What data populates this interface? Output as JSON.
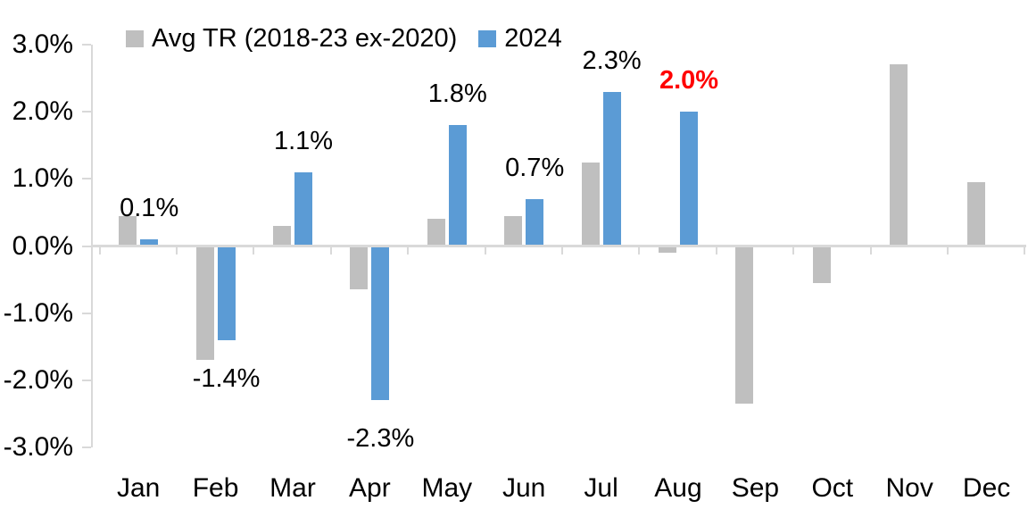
{
  "chart_data": {
    "type": "bar",
    "title": "",
    "xlabel": "",
    "ylabel": "",
    "categories": [
      "Jan",
      "Feb",
      "Mar",
      "Apr",
      "May",
      "Jun",
      "Jul",
      "Aug",
      "Sep",
      "Oct",
      "Nov",
      "Dec"
    ],
    "series": [
      {
        "name": "Avg TR (2018-23 ex-2020)",
        "color": "#BFBFBF",
        "values": [
          0.45,
          -1.7,
          0.3,
          -0.65,
          0.4,
          0.45,
          1.25,
          -0.1,
          -2.35,
          -0.55,
          2.7,
          0.95
        ]
      },
      {
        "name": "2024",
        "color": "#5B9BD5",
        "values": [
          0.1,
          -1.4,
          1.1,
          -2.3,
          1.8,
          0.7,
          2.3,
          2.0,
          null,
          null,
          null,
          null
        ],
        "data_labels": [
          {
            "text": "0.1%",
            "color": "#000000",
            "bold": false
          },
          {
            "text": "-1.4%",
            "color": "#000000",
            "bold": false
          },
          {
            "text": "1.1%",
            "color": "#000000",
            "bold": false
          },
          {
            "text": "-2.3%",
            "color": "#000000",
            "bold": false
          },
          {
            "text": "1.8%",
            "color": "#000000",
            "bold": false
          },
          {
            "text": "0.7%",
            "color": "#000000",
            "bold": false
          },
          {
            "text": "2.3%",
            "color": "#000000",
            "bold": false
          },
          {
            "text": "2.0%",
            "color": "#FF0000",
            "bold": true
          },
          null,
          null,
          null,
          null
        ]
      }
    ],
    "y_axis": {
      "tick_labels": [
        "3.0%",
        "2.0%",
        "1.0%",
        "0.0%",
        "-1.0%",
        "-2.0%",
        "-3.0%"
      ],
      "tick_values": [
        3,
        2,
        1,
        0,
        -1,
        -2,
        -3
      ],
      "min": -3,
      "max": 3,
      "grid": false
    },
    "legend": {
      "position": "top",
      "entries": [
        {
          "label": "Avg TR (2018-23 ex-2020)",
          "color": "#BFBFBF"
        },
        {
          "label": "2024",
          "color": "#5B9BD5"
        }
      ]
    },
    "colors": {
      "axis": "#D9D9D9",
      "background": "#FFFFFF",
      "text": "#000000",
      "highlight": "#FF0000"
    }
  }
}
